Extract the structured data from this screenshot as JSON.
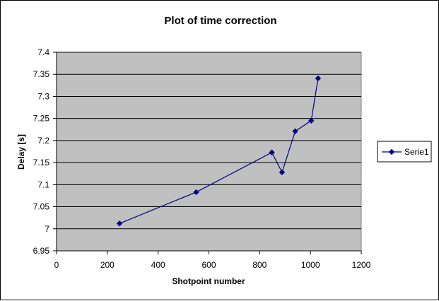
{
  "chart_data": {
    "type": "scatter",
    "title": "Plot of time correction",
    "xlabel": "Shotpoint number",
    "ylabel": "Delay [s]",
    "xlim": [
      0,
      1200
    ],
    "ylim": [
      6.95,
      7.4
    ],
    "x_ticks": [
      "0",
      "200",
      "400",
      "600",
      "800",
      "1000",
      "1200"
    ],
    "y_ticks": [
      "6.95",
      "7",
      "7.05",
      "7.1",
      "7.15",
      "7.2",
      "7.25",
      "7.3",
      "7.35",
      "7.4"
    ],
    "x_tick_values": [
      0,
      200,
      400,
      600,
      800,
      1000,
      1200
    ],
    "y_tick_values": [
      6.95,
      7.0,
      7.05,
      7.1,
      7.15,
      7.2,
      7.25,
      7.3,
      7.35,
      7.4
    ],
    "grid": "horizontal",
    "plot_background": "#c0c0c0",
    "legend_position": "right",
    "series": [
      {
        "name": "Serie1",
        "color": "#000080",
        "marker": "diamond",
        "x": [
          248,
          550,
          848,
          888,
          940,
          1003,
          1030
        ],
        "y": [
          7.012,
          7.083,
          7.173,
          7.128,
          7.221,
          7.245,
          7.341
        ]
      }
    ]
  }
}
